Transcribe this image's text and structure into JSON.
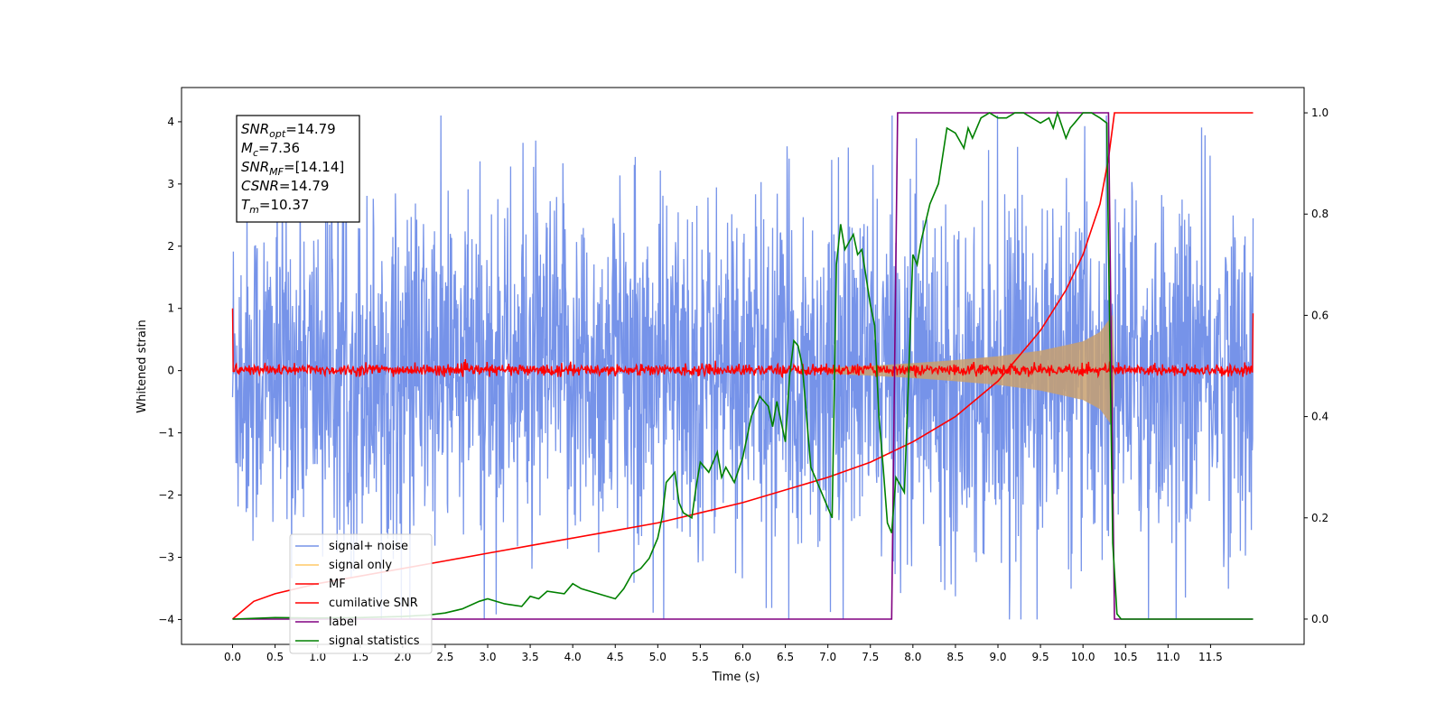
{
  "chart_data": {
    "type": "line",
    "xlabel": "Time (s)",
    "ylabel_left": "Whitened strain",
    "xlim": [
      -0.6,
      12.6
    ],
    "ylim_left": [
      -4.4,
      4.55
    ],
    "ylim_right": [
      -0.05,
      1.05
    ],
    "x_ticks": [
      "0.0",
      "0.5",
      "1.0",
      "1.5",
      "2.0",
      "2.5",
      "3.0",
      "3.5",
      "4.0",
      "4.5",
      "5.0",
      "5.5",
      "6.0",
      "6.5",
      "7.0",
      "7.5",
      "8.0",
      "8.5",
      "9.0",
      "9.5",
      "10.0",
      "10.5",
      "11.0",
      "11.5"
    ],
    "y_ticks_left": [
      "−4",
      "−3",
      "−2",
      "−1",
      "0",
      "1",
      "2",
      "3",
      "4"
    ],
    "y_ticks_right": [
      "0.0",
      "0.2",
      "0.4",
      "0.6",
      "0.8",
      "1.0"
    ],
    "grid": false,
    "legend_position": "lower-left",
    "legend": [
      {
        "label": "signal+ noise",
        "color": "#4169e1"
      },
      {
        "label": "signal only",
        "color": "#ffa500"
      },
      {
        "label": "MF",
        "color": "#ff0000"
      },
      {
        "label": "cumilative SNR",
        "color": "#ff0000"
      },
      {
        "label": "label",
        "color": "#800080"
      },
      {
        "label": "signal statistics",
        "color": "#008000"
      }
    ],
    "annotation_box": {
      "lines": [
        {
          "var": "SNR",
          "sub": "opt",
          "value": "=14.79"
        },
        {
          "var": "M",
          "sub": "c",
          "value": "=7.36"
        },
        {
          "var": "SNR",
          "sub": "MF",
          "value": "=[14.14]"
        },
        {
          "var": "CSNR",
          "sub": "",
          "value": "=14.79"
        },
        {
          "var": "T",
          "sub": "m",
          "value": "=10.37"
        }
      ]
    },
    "series": [
      {
        "name": "signal+ noise",
        "axis": "left",
        "style": "noise",
        "x_range": [
          0.0,
          12.0
        ],
        "envelope": {
          "typical_low": -2.2,
          "typical_high": 2.2,
          "min": -4.0,
          "max": 4.1
        },
        "color": "#4169e1"
      },
      {
        "name": "signal only",
        "axis": "left",
        "style": "chirp_envelope",
        "x_range": [
          7.0,
          10.37
        ],
        "amplitude_points": [
          [
            7.0,
            0.05
          ],
          [
            7.5,
            0.08
          ],
          [
            8.0,
            0.12
          ],
          [
            8.5,
            0.17
          ],
          [
            9.0,
            0.23
          ],
          [
            9.5,
            0.32
          ],
          [
            10.0,
            0.47
          ],
          [
            10.2,
            0.62
          ],
          [
            10.35,
            0.9
          ],
          [
            10.37,
            0.0
          ]
        ],
        "color": "#ffa500"
      },
      {
        "name": "MF",
        "axis": "left",
        "style": "noise",
        "x_range": [
          0.0,
          12.0
        ],
        "envelope": {
          "typical_low": -0.1,
          "typical_high": 0.12,
          "start": 1.0,
          "end": 0.92
        },
        "color": "#ff0000"
      },
      {
        "name": "cumilative SNR",
        "axis": "right",
        "x": [
          0.0,
          0.25,
          0.5,
          1.0,
          1.5,
          2.0,
          2.5,
          3.0,
          3.5,
          4.0,
          4.5,
          5.0,
          5.5,
          6.0,
          6.5,
          7.0,
          7.5,
          8.0,
          8.5,
          9.0,
          9.5,
          9.8,
          10.0,
          10.2,
          10.3,
          10.37,
          12.0
        ],
        "y": [
          0.0,
          0.035,
          0.05,
          0.07,
          0.085,
          0.1,
          0.115,
          0.13,
          0.145,
          0.16,
          0.175,
          0.19,
          0.21,
          0.23,
          0.255,
          0.28,
          0.31,
          0.35,
          0.4,
          0.47,
          0.57,
          0.65,
          0.72,
          0.82,
          0.91,
          1.0,
          1.0
        ],
        "color": "#ff0000"
      },
      {
        "name": "label",
        "axis": "right",
        "x": [
          0.0,
          7.75,
          7.82,
          10.3,
          10.37,
          12.0
        ],
        "y": [
          0.0,
          0.0,
          1.0,
          1.0,
          0.0,
          0.0
        ],
        "color": "#800080"
      },
      {
        "name": "signal statistics",
        "axis": "right",
        "x": [
          0.0,
          0.5,
          1.0,
          1.5,
          2.0,
          2.3,
          2.5,
          2.7,
          2.9,
          3.0,
          3.2,
          3.4,
          3.5,
          3.6,
          3.7,
          3.9,
          4.0,
          4.1,
          4.3,
          4.5,
          4.6,
          4.7,
          4.8,
          4.9,
          5.0,
          5.05,
          5.1,
          5.2,
          5.25,
          5.3,
          5.4,
          5.45,
          5.5,
          5.6,
          5.7,
          5.75,
          5.8,
          5.9,
          6.0,
          6.1,
          6.2,
          6.3,
          6.35,
          6.4,
          6.45,
          6.5,
          6.55,
          6.6,
          6.65,
          6.7,
          6.8,
          6.9,
          7.0,
          7.05,
          7.1,
          7.15,
          7.2,
          7.3,
          7.35,
          7.4,
          7.5,
          7.55,
          7.6,
          7.65,
          7.7,
          7.75,
          7.8,
          7.9,
          7.95,
          8.0,
          8.05,
          8.1,
          8.2,
          8.3,
          8.4,
          8.5,
          8.6,
          8.65,
          8.7,
          8.8,
          8.9,
          9.0,
          9.1,
          9.2,
          9.3,
          9.4,
          9.5,
          9.6,
          9.65,
          9.7,
          9.8,
          9.85,
          9.9,
          10.0,
          10.1,
          10.2,
          10.28,
          10.35,
          10.4,
          10.45,
          10.5,
          12.0
        ],
        "y": [
          0.0,
          0.003,
          0.002,
          0.003,
          0.005,
          0.008,
          0.012,
          0.02,
          0.035,
          0.04,
          0.03,
          0.025,
          0.045,
          0.04,
          0.055,
          0.05,
          0.07,
          0.06,
          0.05,
          0.04,
          0.06,
          0.09,
          0.1,
          0.12,
          0.16,
          0.2,
          0.27,
          0.29,
          0.23,
          0.21,
          0.2,
          0.26,
          0.31,
          0.29,
          0.33,
          0.28,
          0.3,
          0.27,
          0.32,
          0.4,
          0.44,
          0.42,
          0.38,
          0.43,
          0.39,
          0.35,
          0.48,
          0.55,
          0.54,
          0.5,
          0.3,
          0.26,
          0.22,
          0.2,
          0.7,
          0.78,
          0.73,
          0.76,
          0.72,
          0.73,
          0.62,
          0.58,
          0.4,
          0.3,
          0.19,
          0.17,
          0.28,
          0.25,
          0.48,
          0.72,
          0.7,
          0.75,
          0.82,
          0.86,
          0.97,
          0.96,
          0.93,
          0.97,
          0.95,
          0.99,
          1.0,
          0.99,
          0.99,
          1.0,
          1.0,
          0.99,
          0.98,
          0.99,
          0.97,
          1.0,
          0.95,
          0.97,
          0.98,
          1.0,
          1.0,
          0.99,
          0.98,
          0.15,
          0.01,
          0.0,
          0.0,
          0.0
        ],
        "color": "#008000"
      }
    ]
  }
}
